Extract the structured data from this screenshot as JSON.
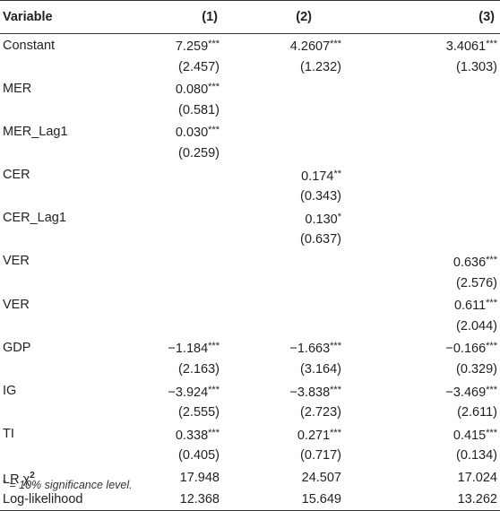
{
  "header": {
    "variable": "Variable",
    "models": [
      "(1)",
      "(2)",
      "(3)"
    ]
  },
  "rows": [
    {
      "label": "Constant",
      "cells": [
        "7.259***",
        "4.2607***",
        "3.4061***"
      ]
    },
    {
      "label": "",
      "cells": [
        "(2.457)",
        "(1.232)",
        "(1.303)"
      ]
    },
    {
      "label": "MER",
      "cells": [
        "0.080***",
        "",
        ""
      ]
    },
    {
      "label": "",
      "cells": [
        "(0.581)",
        "",
        ""
      ]
    },
    {
      "label": "MER_Lag1",
      "cells": [
        "0.030***",
        "",
        ""
      ]
    },
    {
      "label": "",
      "cells": [
        "(0.259)",
        "",
        ""
      ]
    },
    {
      "label": "CER",
      "cells": [
        "",
        "0.174**",
        ""
      ]
    },
    {
      "label": "",
      "cells": [
        "",
        "(0.343)",
        ""
      ]
    },
    {
      "label": "CER_Lag1",
      "cells": [
        "",
        "0.130*",
        ""
      ]
    },
    {
      "label": "",
      "cells": [
        "",
        "(0.637)",
        ""
      ]
    },
    {
      "label": "VER",
      "cells": [
        "",
        "",
        "0.636***"
      ]
    },
    {
      "label": "",
      "cells": [
        "",
        "",
        "(2.576)"
      ]
    },
    {
      "label": "VER",
      "cells": [
        "",
        "",
        "0.611***"
      ]
    },
    {
      "label": "",
      "cells": [
        "",
        "",
        "(2.044)"
      ]
    },
    {
      "label": "GDP",
      "cells": [
        "−1.184***",
        "−1.663***",
        "−0.166***"
      ]
    },
    {
      "label": "",
      "cells": [
        "(2.163)",
        "(3.164)",
        "(0.329)"
      ]
    },
    {
      "label": "IG",
      "cells": [
        "−3.924***",
        "−3.838***",
        "−3.469***"
      ]
    },
    {
      "label": "",
      "cells": [
        "(2.555)",
        "(2.723)",
        "(2.611)"
      ]
    },
    {
      "label": "TI",
      "cells": [
        "0.338***",
        "0.271***",
        "0.415***"
      ]
    },
    {
      "label": "",
      "cells": [
        "(0.405)",
        "(0.717)",
        "(0.134)"
      ]
    },
    {
      "label": "LR χ",
      "label_sup": "2",
      "cells": [
        "17.948",
        "24.507",
        "17.024"
      ]
    },
    {
      "label": "Log-likelihood",
      "cells": [
        "12.368",
        "15.649",
        "13.262"
      ]
    }
  ],
  "note": {
    "marker": "*",
    "text": " = 10% significance level."
  }
}
